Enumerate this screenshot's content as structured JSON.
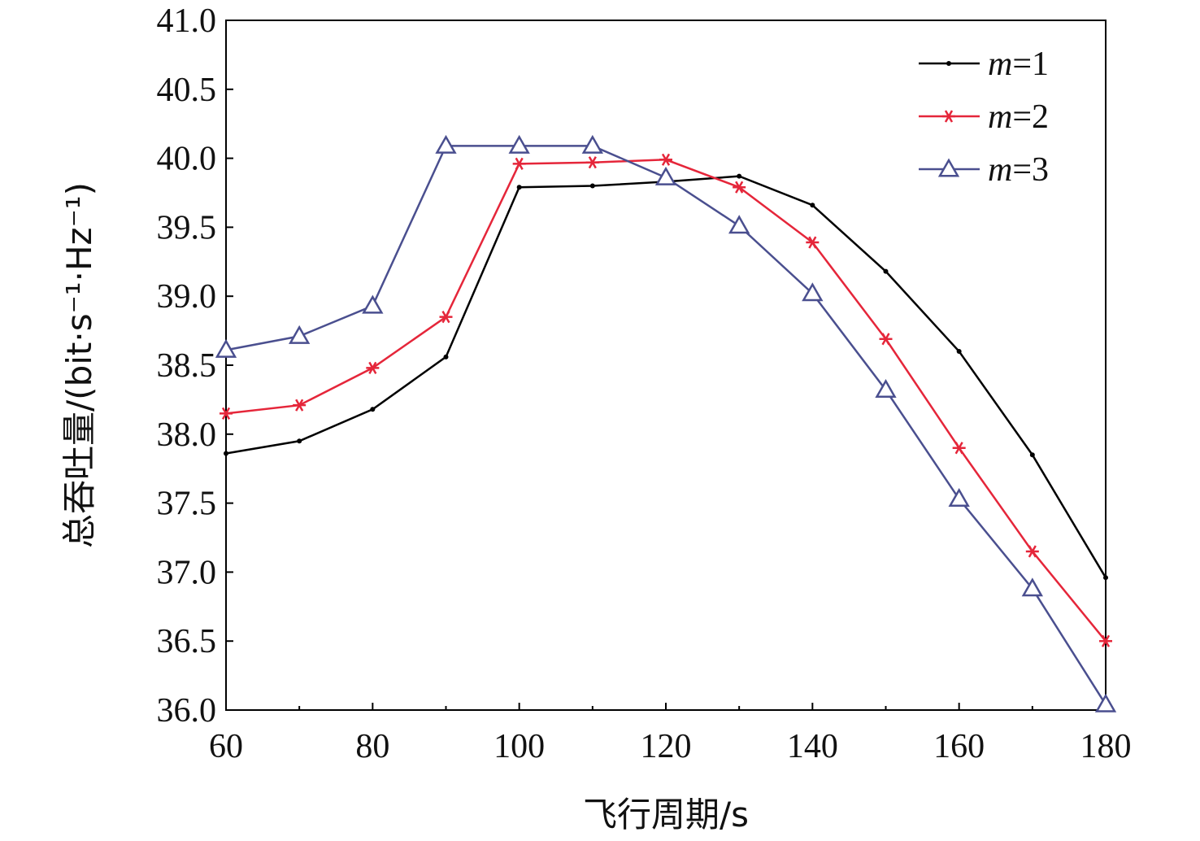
{
  "chart_data": {
    "type": "line",
    "title": "",
    "xlabel": "飞行周期/s",
    "ylabel": "总吞吐量/(bit·s⁻¹·Hz⁻¹)",
    "xlim": [
      60,
      180
    ],
    "ylim": [
      36.0,
      41.0
    ],
    "x_ticks": [
      "60",
      "80",
      "100",
      "120",
      "140",
      "160",
      "180"
    ],
    "y_ticks": [
      "36.0",
      "36.5",
      "37.0",
      "37.5",
      "38.0",
      "38.5",
      "39.0",
      "39.5",
      "40.0",
      "40.5",
      "41.0"
    ],
    "grid": false,
    "legend_position": "top-right",
    "x": [
      60,
      70,
      80,
      90,
      100,
      110,
      120,
      130,
      140,
      150,
      160,
      170,
      180
    ],
    "series": [
      {
        "name": "m=1",
        "name_var": "m",
        "name_val": "=1",
        "color": "#000000",
        "marker": "dot",
        "values": [
          37.86,
          37.95,
          38.18,
          38.56,
          39.79,
          39.8,
          39.83,
          39.87,
          39.66,
          39.18,
          38.6,
          37.85,
          36.96
        ]
      },
      {
        "name": "m=2",
        "name_var": "m",
        "name_val": "=2",
        "color": "#e5263a",
        "marker": "star",
        "values": [
          38.15,
          38.21,
          38.48,
          38.85,
          39.96,
          39.97,
          39.99,
          39.79,
          39.39,
          38.69,
          37.9,
          37.15,
          36.5
        ]
      },
      {
        "name": "m=3",
        "name_var": "m",
        "name_val": "=3",
        "color": "#4a4f8f",
        "marker": "triangle",
        "values": [
          38.61,
          38.71,
          38.93,
          40.09,
          40.09,
          40.09,
          39.86,
          39.51,
          39.02,
          38.32,
          37.53,
          36.88,
          36.04
        ]
      }
    ]
  }
}
